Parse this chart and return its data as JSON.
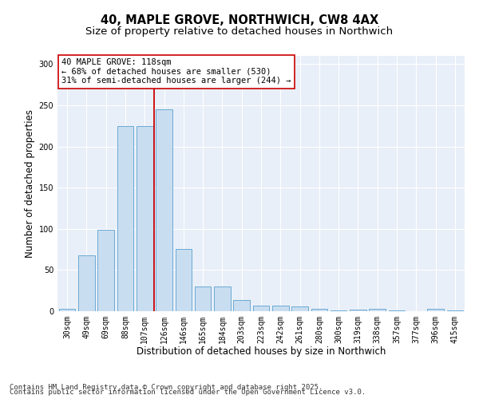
{
  "title_line1": "40, MAPLE GROVE, NORTHWICH, CW8 4AX",
  "title_line2": "Size of property relative to detached houses in Northwich",
  "xlabel": "Distribution of detached houses by size in Northwich",
  "ylabel": "Number of detached properties",
  "categories": [
    "30sqm",
    "49sqm",
    "69sqm",
    "88sqm",
    "107sqm",
    "126sqm",
    "146sqm",
    "165sqm",
    "184sqm",
    "203sqm",
    "223sqm",
    "242sqm",
    "261sqm",
    "280sqm",
    "300sqm",
    "319sqm",
    "338sqm",
    "357sqm",
    "377sqm",
    "396sqm",
    "415sqm"
  ],
  "values": [
    3,
    68,
    99,
    225,
    225,
    245,
    76,
    30,
    30,
    14,
    7,
    7,
    6,
    3,
    1,
    2,
    3,
    1,
    0,
    3,
    1
  ],
  "bar_color": "#c9ddf0",
  "bar_edge_color": "#6aaad4",
  "bar_edge_width": 0.7,
  "vline_color": "#cc0000",
  "annotation_text": "40 MAPLE GROVE: 118sqm\n← 68% of detached houses are smaller (530)\n31% of semi-detached houses are larger (244) →",
  "annotation_box_color": "#cc0000",
  "annotation_text_fontsize": 7.5,
  "ylim": [
    0,
    310
  ],
  "yticks": [
    0,
    50,
    100,
    150,
    200,
    250,
    300
  ],
  "background_color": "#e8eff8",
  "grid_color": "#ffffff",
  "footer_line1": "Contains HM Land Registry data © Crown copyright and database right 2025.",
  "footer_line2": "Contains public sector information licensed under the Open Government Licence v3.0.",
  "title_fontsize": 10.5,
  "subtitle_fontsize": 9.5,
  "axis_label_fontsize": 8.5,
  "tick_fontsize": 7,
  "footer_fontsize": 6.5
}
